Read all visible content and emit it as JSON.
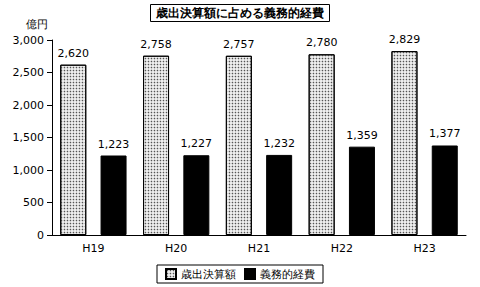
{
  "chart_data": {
    "type": "bar",
    "title": "歳出決算額に占める義務的経費",
    "ylabel": "億円",
    "categories": [
      "H19",
      "H20",
      "H21",
      "H22",
      "H23"
    ],
    "series": [
      {
        "name": "歳出決算額",
        "color": "#eeeeee",
        "values": [
          2620,
          2758,
          2757,
          2780,
          2829
        ],
        "value_labels": [
          "2,620",
          "2,758",
          "2,757",
          "2,780",
          "2,829"
        ]
      },
      {
        "name": "義務的経費",
        "color": "#000000",
        "values": [
          1223,
          1227,
          1232,
          1359,
          1377
        ],
        "value_labels": [
          "1,223",
          "1,227",
          "1,232",
          "1,359",
          "1,377"
        ]
      }
    ],
    "ylim": [
      0,
      3000
    ],
    "yticks": [
      0,
      500,
      {
        "value": 1000,
        "label": "1,000"
      },
      {
        "value": 1500,
        "label": "1,500"
      },
      {
        "value": 2000,
        "label": "2,000"
      },
      {
        "value": 2500,
        "label": "2,500"
      },
      {
        "value": 3000,
        "label": "3,000"
      }
    ],
    "grid": false,
    "legend": "bottom",
    "data_labels": true
  }
}
